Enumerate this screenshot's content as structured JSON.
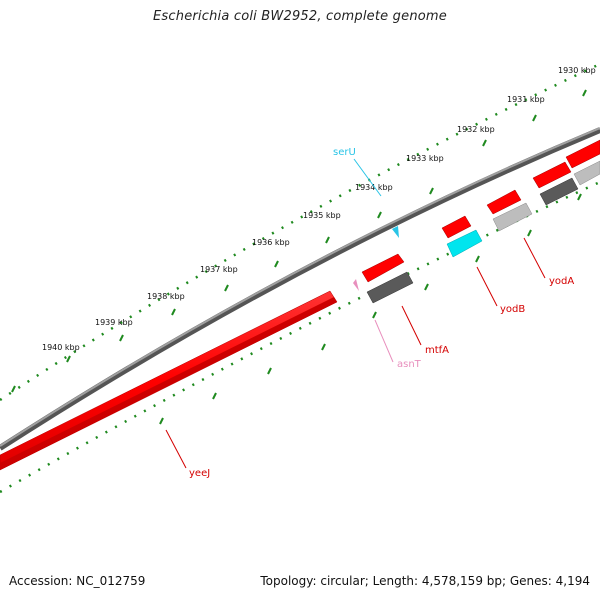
{
  "title": "Escherichia coli BW2952, complete genome",
  "footer": {
    "accession": "Accession: NC_012759",
    "summary": "Topology: circular; Length: 4,578,159 bp; Genes: 4,194"
  },
  "ticks": [
    "1930 kbp",
    "1931 kbp",
    "1932 kbp",
    "1933 kbp",
    "1934 kbp",
    "1935 kbp",
    "1936 kbp",
    "1937 kbp",
    "1938 kbp",
    "1939 kbp",
    "1940 kbp"
  ],
  "genes": [
    {
      "name": "serU",
      "color": "#29c4e6"
    },
    {
      "name": "asnT",
      "color": "#e88fbd"
    },
    {
      "name": "mtfA",
      "color": "#d40000"
    },
    {
      "name": "yodB",
      "color": "#d40000"
    },
    {
      "name": "yodA",
      "color": "#d40000"
    },
    {
      "name": "yeeJ",
      "color": "#d40000"
    }
  ],
  "colors": {
    "backbone": "#8a8a8a",
    "ruler": "#1f8a1f",
    "cds": "#ff0000",
    "cds_edge": "#b30000",
    "gene_dark": "#5a5a5a",
    "gene_light": "#bdbdbd",
    "trna": "#00e5ee"
  }
}
